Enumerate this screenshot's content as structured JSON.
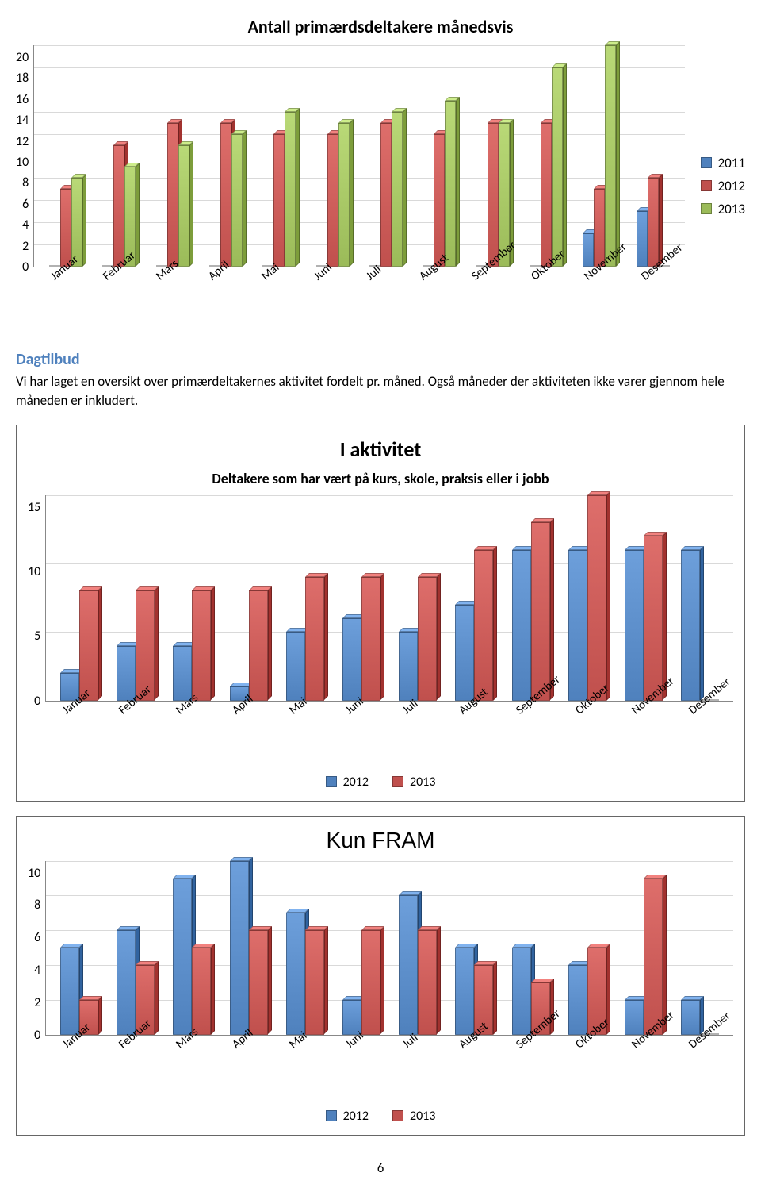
{
  "chart1": {
    "title": "Antall primærdsdeltakere månedsvis",
    "type": "bar",
    "categories": [
      "Januar",
      "Februar",
      "Mars",
      "April",
      "Mai",
      "Juni",
      "Juli",
      "August",
      "September",
      "Oktober",
      "November",
      "Desember"
    ],
    "series": [
      {
        "name": "2011",
        "color": "#4f81bd",
        "values": [
          0,
          0,
          0,
          0,
          0,
          0,
          0,
          0,
          0,
          0,
          3,
          5
        ]
      },
      {
        "name": "2012",
        "color": "#c0504d",
        "values": [
          7,
          11,
          13,
          13,
          12,
          12,
          13,
          12,
          13,
          13,
          7,
          8
        ]
      },
      {
        "name": "2013",
        "color": "#9bbb59",
        "values": [
          8,
          9,
          11,
          12,
          14,
          13,
          14,
          15,
          13,
          18,
          20,
          0
        ]
      }
    ],
    "ymin": 0,
    "ymax": 20,
    "ystep": 2,
    "grid_color": "#d9d9d9",
    "background_color": "#ffffff",
    "label_fontsize": 15
  },
  "section_heading": "Dagtilbud",
  "body_text": "Vi har laget en oversikt over primærdeltakernes aktivitet fordelt pr. måned. Også måneder der aktiviteten ikke varer gjennom hele måneden er inkludert.",
  "chart2": {
    "title": "I aktivitet",
    "subtitle": "Deltakere som har vært på kurs, skole, praksis eller i jobb",
    "type": "bar",
    "categories": [
      "Januar",
      "Februar",
      "Mars",
      "April",
      "Mai",
      "Juni",
      "Juli",
      "August",
      "September",
      "Oktober",
      "November",
      "Desember"
    ],
    "series": [
      {
        "name": "2012",
        "color": "#4f81bd",
        "values": [
          2,
          4,
          4,
          1,
          5,
          6,
          5,
          7,
          11,
          11,
          11,
          11
        ]
      },
      {
        "name": "2013",
        "color": "#c0504d",
        "values": [
          8,
          8,
          8,
          8,
          9,
          9,
          9,
          11,
          13,
          15,
          12,
          0
        ]
      }
    ],
    "ymin": 0,
    "ymax": 15,
    "ystep": 5,
    "grid_color": "#d9d9d9",
    "background_color": "#ffffff",
    "label_fontsize": 15
  },
  "chart3": {
    "title": "Kun FRAM",
    "type": "bar",
    "categories": [
      "Januar",
      "Februar",
      "Mars",
      "April",
      "Mai",
      "Juni",
      "Juli",
      "August",
      "September",
      "Oktober",
      "November",
      "Desember"
    ],
    "series": [
      {
        "name": "2012",
        "color": "#4f81bd",
        "values": [
          5,
          6,
          9,
          10,
          7,
          2,
          8,
          5,
          5,
          4,
          2,
          2
        ]
      },
      {
        "name": "2013",
        "color": "#c0504d",
        "values": [
          2,
          4,
          5,
          6,
          6,
          6,
          6,
          4,
          3,
          5,
          9,
          0
        ]
      }
    ],
    "ymin": 0,
    "ymax": 10,
    "ystep": 2,
    "grid_color": "#d9d9d9",
    "background_color": "#ffffff",
    "label_fontsize": 15
  },
  "page_number": "6"
}
